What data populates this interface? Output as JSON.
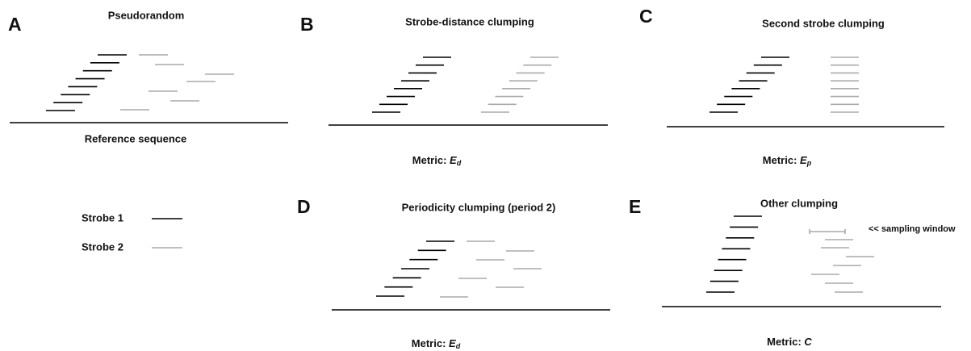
{
  "panels": [
    {
      "letter": "A",
      "title": "Pseudorandom",
      "reference_label": "Reference sequence"
    },
    {
      "letter": "B",
      "title": "Strobe-distance clumping",
      "metric": {
        "prefix": "Metric:",
        "symbol": "E",
        "subscript": "d"
      }
    },
    {
      "letter": "C",
      "title": "Second strobe clumping",
      "metric": {
        "prefix": "Metric:",
        "symbol": "E",
        "subscript": "p"
      }
    },
    {
      "letter": "D",
      "title": "Periodicity clumping (period 2)",
      "metric": {
        "prefix": "Metric:",
        "symbol": "E",
        "subscript": "d"
      }
    },
    {
      "letter": "E",
      "title": "Other clumping",
      "annotation": "<< sampling window",
      "metric": {
        "prefix": "Metric:",
        "symbol": "C"
      }
    }
  ],
  "legend": [
    {
      "label": "Strobe 1"
    },
    {
      "label": "Strobe 2"
    }
  ]
}
